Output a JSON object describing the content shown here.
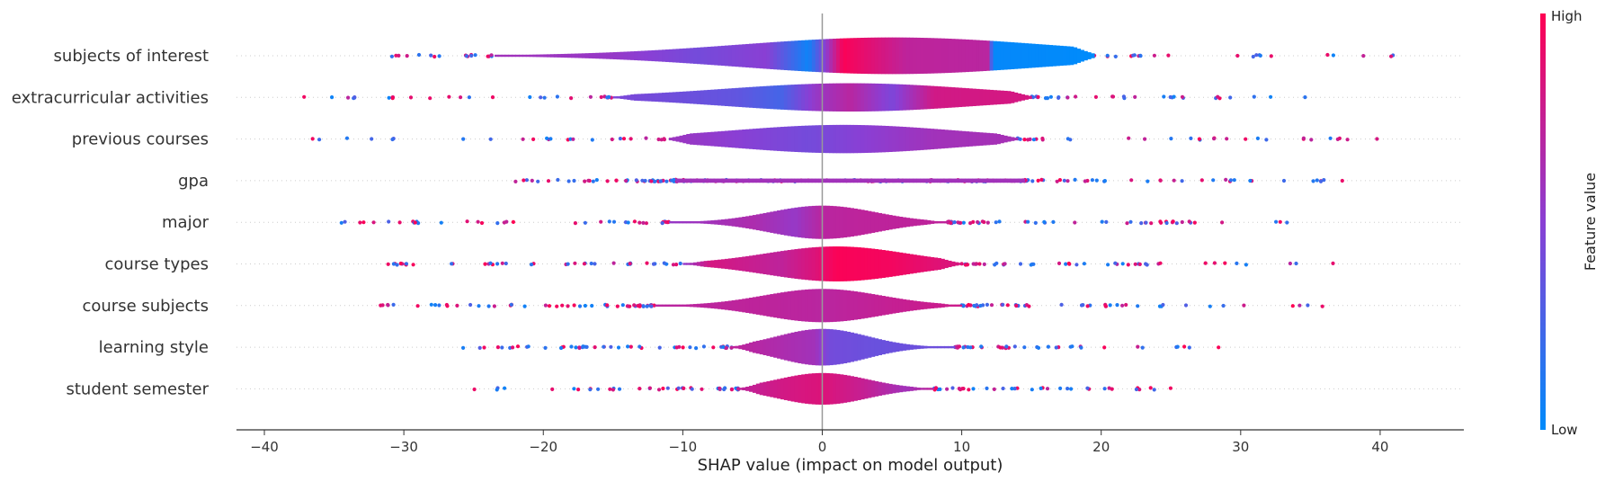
{
  "chart_data": {
    "type": "violin",
    "xlabel": "SHAP value (impact on model output)",
    "xlim": [
      -42,
      46
    ],
    "x_ticks": [
      -40,
      -30,
      -20,
      -10,
      0,
      10,
      20,
      30,
      40
    ],
    "colorbar": {
      "label": "Feature value",
      "high": "High",
      "low": "Low",
      "color_low": "#008bfb",
      "color_mid": "#8a3fd4",
      "color_high": "#ff0052"
    },
    "series": [
      {
        "name": "subjects of interest",
        "core": [
          -23.5,
          19.5
        ],
        "tail": [
          -31.5,
          42
        ],
        "peak": 5,
        "width_max": 0.44,
        "skew": 0.6,
        "spread": 11,
        "colors": [
          [
            -23.5,
            0.6
          ],
          [
            -15,
            0.55
          ],
          [
            -9,
            0.42
          ],
          [
            -4,
            0.5
          ],
          [
            -1,
            0.05
          ],
          [
            1.5,
            0.98
          ],
          [
            6,
            0.72
          ],
          [
            12,
            0.7
          ],
          [
            12.2,
            0.02
          ],
          [
            19.5,
            0.0
          ]
        ],
        "dot_count": 42
      },
      {
        "name": "extracurricular activities",
        "core": [
          -15,
          15
        ],
        "tail": [
          -37.5,
          35.5
        ],
        "peak": 2,
        "width_max": 0.34,
        "skew": 0.4,
        "spread": 9,
        "colors": [
          [
            -15,
            0.45
          ],
          [
            -6,
            0.35
          ],
          [
            -3,
            0.25
          ],
          [
            -0.5,
            0.55
          ],
          [
            2,
            0.7
          ],
          [
            5,
            0.45
          ],
          [
            8,
            0.8
          ],
          [
            15,
            0.82
          ]
        ],
        "dot_count": 60
      },
      {
        "name": "previous courses",
        "core": [
          -11,
          14
        ],
        "tail": [
          -38,
          42
        ],
        "peak": 1.5,
        "width_max": 0.34,
        "skew": 0.5,
        "spread": 8,
        "colors": [
          [
            -11,
            0.58
          ],
          [
            -5,
            0.48
          ],
          [
            -1,
            0.42
          ],
          [
            2,
            0.48
          ],
          [
            8,
            0.6
          ],
          [
            14,
            0.62
          ]
        ],
        "dot_count": 58
      },
      {
        "name": "gpa",
        "core": [
          -10.5,
          14.5
        ],
        "tail": [
          -23.5,
          37.5
        ],
        "peak": 0,
        "width_max": 0.05,
        "skew": 0.0,
        "spread": 10,
        "colors": [
          [
            -10.5,
            0.6
          ],
          [
            14.5,
            0.6
          ]
        ],
        "dot_count": 190,
        "dot_mix": true
      },
      {
        "name": "major",
        "core": [
          -11,
          9
        ],
        "tail": [
          -35,
          33.5
        ],
        "peak": 0,
        "width_max": 0.4,
        "skew": 0.0,
        "spread": 3.8,
        "colors": [
          [
            -11,
            0.55
          ],
          [
            -5,
            0.65
          ],
          [
            -2,
            0.55
          ],
          [
            0,
            0.7
          ],
          [
            3,
            0.72
          ],
          [
            9,
            0.72
          ]
        ],
        "dot_count": 95
      },
      {
        "name": "course types",
        "core": [
          -10,
          10
        ],
        "tail": [
          -31.5,
          38
        ],
        "peak": 1,
        "width_max": 0.42,
        "skew": 0.3,
        "spread": 5,
        "colors": [
          [
            -10,
            0.52
          ],
          [
            -8,
            0.82
          ],
          [
            -3,
            0.72
          ],
          [
            -0.5,
            0.85
          ],
          [
            1,
            0.98
          ],
          [
            5,
            0.95
          ],
          [
            10,
            0.82
          ]
        ],
        "dot_count": 90
      },
      {
        "name": "course subjects",
        "core": [
          -12,
          10
        ],
        "tail": [
          -33,
          37.5
        ],
        "peak": 0,
        "width_max": 0.4,
        "skew": 0.0,
        "spread": 4.2,
        "colors": [
          [
            -12,
            0.7
          ],
          [
            -5,
            0.72
          ],
          [
            0,
            0.7
          ],
          [
            5,
            0.75
          ],
          [
            10,
            0.78
          ]
        ],
        "dot_count": 100
      },
      {
        "name": "learning style",
        "core": [
          -6.5,
          9.5
        ],
        "tail": [
          -27.5,
          28.5
        ],
        "peak": 0,
        "width_max": 0.44,
        "skew": 0.0,
        "spread": 3.2,
        "colors": [
          [
            -6.5,
            0.72
          ],
          [
            -3,
            0.65
          ],
          [
            -0.5,
            0.6
          ],
          [
            0.5,
            0.42
          ],
          [
            4,
            0.38
          ],
          [
            9.5,
            0.4
          ]
        ],
        "dot_count": 88
      },
      {
        "name": "student semester",
        "core": [
          -6,
          8
        ],
        "tail": [
          -25.5,
          25
        ],
        "peak": 0,
        "width_max": 0.38,
        "skew": 0.0,
        "spread": 3.2,
        "colors": [
          [
            -6,
            0.72
          ],
          [
            -3,
            0.8
          ],
          [
            0,
            0.85
          ],
          [
            3,
            0.75
          ],
          [
            6,
            0.6
          ],
          [
            8,
            0.72
          ]
        ],
        "dot_count": 80
      }
    ]
  }
}
